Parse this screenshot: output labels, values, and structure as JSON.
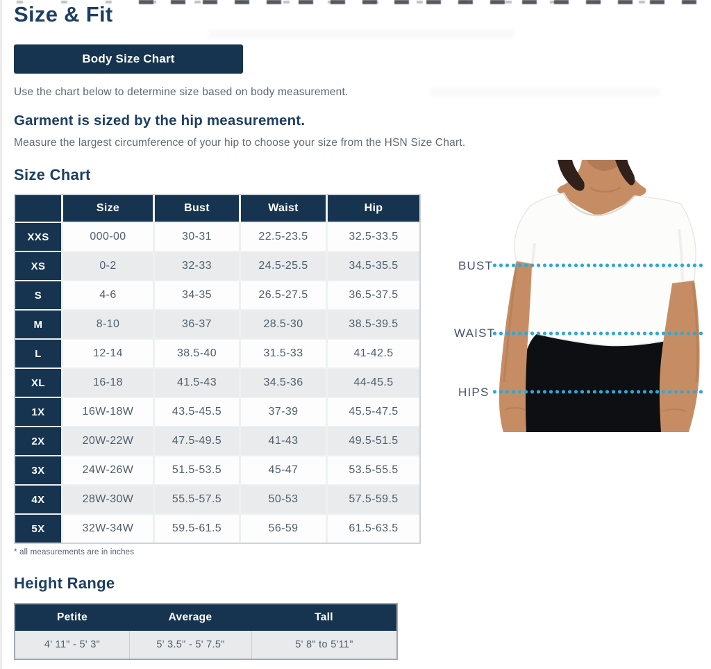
{
  "page": {
    "title": "Size & Fit",
    "button": "Body Size Chart",
    "intro": "Use the chart below to determine size based on body measurement.",
    "garment_note": "Garment is sized by the hip measurement.",
    "measure_note": "Measure the largest circumference of your hip to choose your size from the HSN Size Chart."
  },
  "size_chart": {
    "heading": "Size Chart",
    "columns": [
      "Size",
      "Bust",
      "Waist",
      "Hip"
    ],
    "rows": [
      {
        "label": "XXS",
        "cells": [
          "000-00",
          "30-31",
          "22.5-23.5",
          "32.5-33.5"
        ]
      },
      {
        "label": "XS",
        "cells": [
          "0-2",
          "32-33",
          "24.5-25.5",
          "34.5-35.5"
        ]
      },
      {
        "label": "S",
        "cells": [
          "4-6",
          "34-35",
          "26.5-27.5",
          "36.5-37.5"
        ]
      },
      {
        "label": "M",
        "cells": [
          "8-10",
          "36-37",
          "28.5-30",
          "38.5-39.5"
        ]
      },
      {
        "label": "L",
        "cells": [
          "12-14",
          "38.5-40",
          "31.5-33",
          "41-42.5"
        ]
      },
      {
        "label": "XL",
        "cells": [
          "16-18",
          "41.5-43",
          "34.5-36",
          "44-45.5"
        ]
      },
      {
        "label": "1X",
        "cells": [
          "16W-18W",
          "43.5-45.5",
          "37-39",
          "45.5-47.5"
        ]
      },
      {
        "label": "2X",
        "cells": [
          "20W-22W",
          "47.5-49.5",
          "41-43",
          "49.5-51.5"
        ]
      },
      {
        "label": "3X",
        "cells": [
          "24W-26W",
          "51.5-53.5",
          "45-47",
          "53.5-55.5"
        ]
      },
      {
        "label": "4X",
        "cells": [
          "28W-30W",
          "55.5-57.5",
          "50-53",
          "57.5-59.5"
        ]
      },
      {
        "label": "5X",
        "cells": [
          "32W-34W",
          "59.5-61.5",
          "56-59",
          "61.5-63.5"
        ]
      }
    ],
    "footnote": "* all measurements are in inches"
  },
  "figure": {
    "labels": {
      "bust": "BUST",
      "waist": "WAIST",
      "hips": "HIPS"
    }
  },
  "height_range": {
    "heading": "Height Range",
    "columns": [
      "Petite",
      "Average",
      "Tall"
    ],
    "values": [
      "4' 11\" - 5' 3\"",
      "5' 3.5\" - 5' 7.5\"",
      "5' 8\" to 5'11\""
    ]
  },
  "colors": {
    "navy": "#16344f",
    "heading_navy": "#1d3e63",
    "dotted_line_cyan": "#2ca9d7",
    "row_alt_gray": "#e9ebec",
    "body_text_gray": "#5d6872",
    "cell_text": "#4e5e6d",
    "table_border": "#ccd3d9"
  }
}
